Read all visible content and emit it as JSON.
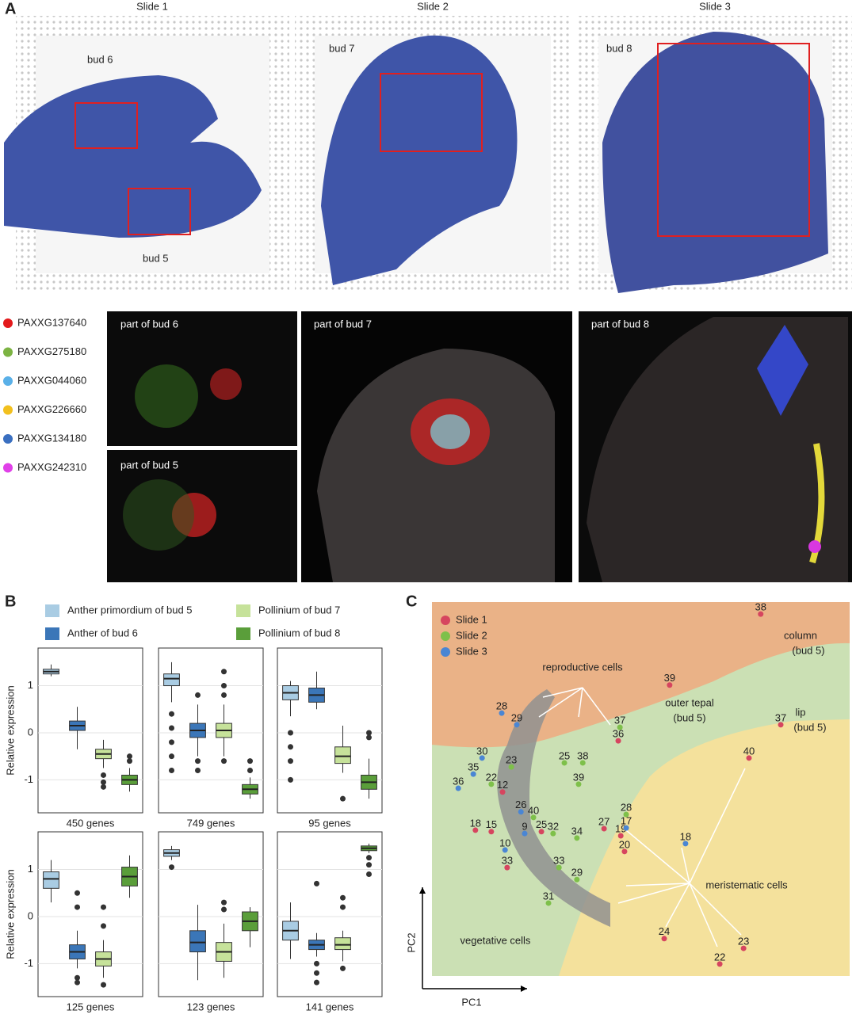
{
  "panel_labels": [
    "A",
    "B",
    "C"
  ],
  "panel_a": {
    "slides": [
      "Slide 1",
      "Slide 2",
      "Slide 3"
    ],
    "bud_labels": [
      "bud 6",
      "bud 5",
      "bud 7",
      "bud 8"
    ],
    "genes": [
      {
        "name": "PAXXG137640",
        "color": "#e31a1c"
      },
      {
        "name": "PAXXG275180",
        "color": "#7cb342"
      },
      {
        "name": "PAXXG044060",
        "color": "#5ab0e8"
      },
      {
        "name": "PAXXG226660",
        "color": "#f2c01e"
      },
      {
        "name": "PAXXG134180",
        "color": "#3a6fc0"
      },
      {
        "name": "PAXXG242310",
        "color": "#e040e8"
      }
    ],
    "crops": [
      "part of bud 6",
      "part of bud 5",
      "part of bud 7",
      "part of bud 8"
    ]
  },
  "panel_b": {
    "legend": [
      {
        "name": "Anther primordium of bud 5",
        "color": "#a9cce3"
      },
      {
        "name": "Pollinium of bud 7",
        "color": "#c6e29a"
      },
      {
        "name": "Anther of bud 6",
        "color": "#3b76b8"
      },
      {
        "name": "Pollinium of bud 8",
        "color": "#5a9e3a"
      }
    ],
    "order": [
      0,
      2,
      1,
      3
    ]
  },
  "chart_data": [
    {
      "type": "box",
      "xlabel": "450 genes",
      "ylabel": "Relative expression",
      "ylim": [
        -1.7,
        1.8
      ],
      "yticks": [
        -1,
        0,
        1
      ],
      "boxes": [
        {
          "median": 1.3,
          "q1": 1.25,
          "q3": 1.35,
          "low": 1.2,
          "high": 1.45,
          "outliers": []
        },
        {
          "median": 0.15,
          "q1": 0.05,
          "q3": 0.25,
          "low": -0.35,
          "high": 0.55,
          "outliers": []
        },
        {
          "median": -0.45,
          "q1": -0.55,
          "q3": -0.35,
          "low": -0.75,
          "high": -0.15,
          "outliers": [
            -0.9,
            -1.05,
            -1.15
          ]
        },
        {
          "median": -1.0,
          "q1": -1.1,
          "q3": -0.9,
          "low": -1.25,
          "high": -0.75,
          "outliers": [
            -0.6,
            -0.5
          ]
        }
      ]
    },
    {
      "type": "box",
      "xlabel": "749 genes",
      "ylim": [
        -1.7,
        1.8
      ],
      "yticks": [
        -1,
        0,
        1
      ],
      "boxes": [
        {
          "median": 1.15,
          "q1": 1.0,
          "q3": 1.25,
          "low": 0.65,
          "high": 1.5,
          "outliers": [
            0.4,
            0.1,
            -0.2,
            -0.5,
            -0.8
          ]
        },
        {
          "median": 0.05,
          "q1": -0.1,
          "q3": 0.2,
          "low": -0.5,
          "high": 0.6,
          "outliers": [
            0.8,
            -0.6,
            -0.8
          ]
        },
        {
          "median": 0.05,
          "q1": -0.1,
          "q3": 0.2,
          "low": -0.5,
          "high": 0.6,
          "outliers": [
            0.8,
            1.0,
            1.3,
            -0.6
          ]
        },
        {
          "median": -1.2,
          "q1": -1.3,
          "q3": -1.1,
          "low": -1.4,
          "high": -0.95,
          "outliers": [
            -0.8,
            -0.6
          ]
        }
      ]
    },
    {
      "type": "box",
      "xlabel": "95 genes",
      "ylim": [
        -1.7,
        1.8
      ],
      "yticks": [
        -1,
        0,
        1
      ],
      "boxes": [
        {
          "median": 0.85,
          "q1": 0.7,
          "q3": 1.0,
          "low": 0.35,
          "high": 1.1,
          "outliers": [
            0.0,
            -0.3,
            -0.6,
            -1.0
          ]
        },
        {
          "median": 0.8,
          "q1": 0.65,
          "q3": 0.95,
          "low": 0.5,
          "high": 1.3,
          "outliers": []
        },
        {
          "median": -0.5,
          "q1": -0.65,
          "q3": -0.3,
          "low": -0.85,
          "high": 0.15,
          "outliers": [
            -1.4
          ]
        },
        {
          "median": -1.05,
          "q1": -1.2,
          "q3": -0.9,
          "low": -1.4,
          "high": -0.55,
          "outliers": [
            -0.1,
            0.0
          ]
        }
      ]
    },
    {
      "type": "box",
      "xlabel": "125 genes",
      "ylabel": "Relative expression",
      "ylim": [
        -1.7,
        1.8
      ],
      "yticks": [
        -1,
        0,
        1
      ],
      "boxes": [
        {
          "median": 0.8,
          "q1": 0.6,
          "q3": 0.95,
          "low": 0.3,
          "high": 1.2,
          "outliers": []
        },
        {
          "median": -0.75,
          "q1": -0.9,
          "q3": -0.6,
          "low": -1.1,
          "high": -0.3,
          "outliers": [
            0.5,
            0.2,
            -1.3,
            -1.4
          ]
        },
        {
          "median": -0.9,
          "q1": -1.05,
          "q3": -0.75,
          "low": -1.3,
          "high": -0.5,
          "outliers": [
            0.2,
            -0.2,
            -1.45
          ]
        },
        {
          "median": 0.85,
          "q1": 0.65,
          "q3": 1.05,
          "low": 0.4,
          "high": 1.3,
          "outliers": []
        }
      ]
    },
    {
      "type": "box",
      "xlabel": "123 genes",
      "ylim": [
        -1.7,
        1.8
      ],
      "yticks": [
        -1,
        0,
        1
      ],
      "boxes": [
        {
          "median": 1.35,
          "q1": 1.28,
          "q3": 1.42,
          "low": 1.2,
          "high": 1.5,
          "outliers": [
            1.05
          ]
        },
        {
          "median": -0.55,
          "q1": -0.75,
          "q3": -0.3,
          "low": -1.35,
          "high": 0.25,
          "outliers": []
        },
        {
          "median": -0.75,
          "q1": -0.95,
          "q3": -0.55,
          "low": -1.3,
          "high": -0.15,
          "outliers": [
            0.15,
            0.3
          ]
        },
        {
          "median": -0.1,
          "q1": -0.3,
          "q3": 0.1,
          "low": -0.65,
          "high": 0.2,
          "outliers": []
        }
      ]
    },
    {
      "type": "box",
      "xlabel": "141 genes",
      "ylim": [
        -1.7,
        1.8
      ],
      "yticks": [
        -1,
        0,
        1
      ],
      "boxes": [
        {
          "median": -0.3,
          "q1": -0.5,
          "q3": -0.1,
          "low": -0.9,
          "high": 0.3,
          "outliers": []
        },
        {
          "median": -0.6,
          "q1": -0.7,
          "q3": -0.5,
          "low": -0.85,
          "high": -0.35,
          "outliers": [
            0.7,
            -1.0,
            -1.2,
            -1.4
          ]
        },
        {
          "median": -0.6,
          "q1": -0.7,
          "q3": -0.45,
          "low": -0.95,
          "high": -0.3,
          "outliers": [
            0.4,
            0.2,
            -1.1
          ]
        },
        {
          "median": 1.45,
          "q1": 1.4,
          "q3": 1.5,
          "low": 1.35,
          "high": 1.55,
          "outliers": [
            1.25,
            1.1,
            0.9
          ]
        }
      ]
    },
    {
      "type": "scatter",
      "xlabel": "PC1",
      "ylabel": "PC2",
      "annotations": [
        "reproductive cells",
        "vegetative cells",
        "meristematic cells",
        "column",
        "(bud 5)",
        "lip",
        "(bud 5)",
        "outer tepal",
        "(bud 5)"
      ],
      "series": [
        {
          "name": "Slide 1",
          "color": "#d6455f",
          "x": [
            78.7,
            83.5,
            56.9,
            44.6,
            75.9,
            45.2,
            46.1,
            55.6,
            68.9,
            74.6,
            26.2,
            18.0,
            16.9,
            14.2,
            10.4,
            41.2
          ],
          "y": [
            96.8,
            67.2,
            77.8,
            62.9,
            58.3,
            37.5,
            33.3,
            10.0,
            3.2,
            7.4,
            38.6,
            29.0,
            49.2,
            38.6,
            39.0,
            39.4
          ],
          "labels": [
            38,
            37,
            39,
            36,
            40,
            19,
            20,
            24,
            22,
            23,
            25,
            33,
            12,
            15,
            18,
            27
          ]
        },
        {
          "name": "Slide 2",
          "color": "#7ec04a",
          "x": [
            45.0,
            46.5,
            31.7,
            36.1,
            35.1,
            24.3,
            29.0,
            30.4,
            34.7,
            34.7,
            19.0,
            14.2,
            27.9
          ],
          "y": [
            66.5,
            43.2,
            57.0,
            57.0,
            51.3,
            42.4,
            38.1,
            29.0,
            25.8,
            36.9,
            55.9,
            51.3,
            19.5
          ],
          "labels": [
            37,
            28,
            25,
            38,
            39,
            40,
            32,
            33,
            29,
            34,
            23,
            22,
            31
          ]
        },
        {
          "name": "Slide 3",
          "color": "#4a86d4",
          "x": [
            16.7,
            20.3,
            12.0,
            9.9,
            6.3,
            46.5,
            60.7,
            21.3,
            22.2,
            17.5
          ],
          "y": [
            70.3,
            67.2,
            58.3,
            54.0,
            50.2,
            39.6,
            35.4,
            43.9,
            38.1,
            33.7
          ],
          "labels": [
            28,
            29,
            30,
            35,
            36,
            17,
            18,
            26,
            9,
            10
          ]
        }
      ]
    }
  ]
}
